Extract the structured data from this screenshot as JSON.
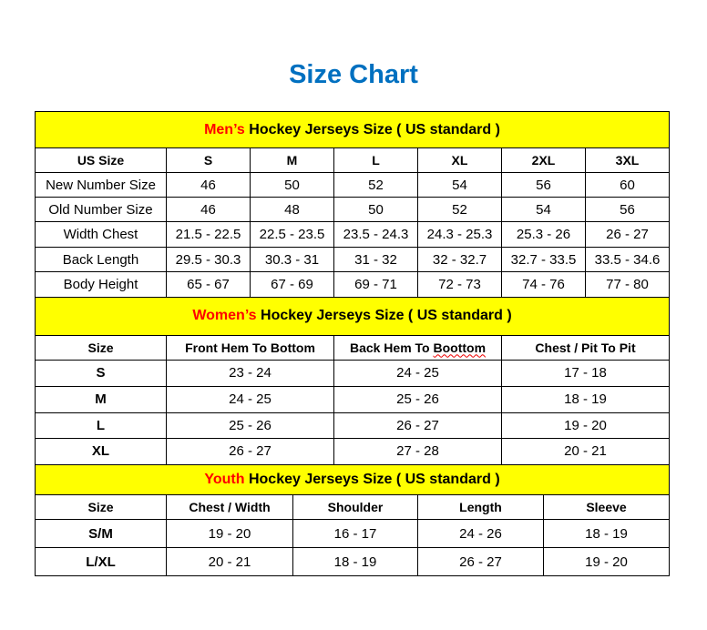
{
  "title": "Size Chart",
  "colors": {
    "title": "#0070c0",
    "section_bg": "#ffff00",
    "highlight": "#ff0000"
  },
  "men": {
    "prefix": "Men’s",
    "heading": " Hockey Jerseys Size ( US standard )",
    "columns": [
      "US Size",
      "S",
      "M",
      "L",
      "XL",
      "2XL",
      "3XL"
    ],
    "rows": [
      {
        "label": "New Number Size",
        "values": [
          "46",
          "50",
          "52",
          "54",
          "56",
          "60"
        ]
      },
      {
        "label": "Old Number Size",
        "values": [
          "46",
          "48",
          "50",
          "52",
          "54",
          "56"
        ]
      },
      {
        "label": "Width Chest",
        "values": [
          "21.5 - 22.5",
          "22.5 - 23.5",
          "23.5 - 24.3",
          "24.3 - 25.3",
          "25.3 - 26",
          "26 - 27"
        ]
      },
      {
        "label": "Back Length",
        "values": [
          "29.5 - 30.3",
          "30.3 - 31",
          "31 - 32",
          "32 - 32.7",
          "32.7 - 33.5",
          "33.5 - 34.6"
        ]
      },
      {
        "label": "Body Height",
        "values": [
          "65 - 67",
          "67 - 69",
          "69 - 71",
          "72 - 73",
          "74 - 76",
          "77 - 80"
        ]
      }
    ]
  },
  "women": {
    "prefix": "Women’s",
    "heading": " Hockey Jerseys Size ( US standard )",
    "columns": [
      "Size",
      "Front Hem To Bottom",
      "Back Hem To ",
      "Chest / Pit To Pit"
    ],
    "misspelled_word": "Boottom",
    "rows": [
      {
        "label": "S",
        "values": [
          "23 - 24",
          "24 - 25",
          "17 - 18"
        ]
      },
      {
        "label": "M",
        "values": [
          "24 - 25",
          "25 - 26",
          "18 - 19"
        ]
      },
      {
        "label": "L",
        "values": [
          "25 - 26",
          "26 - 27",
          "19 - 20"
        ]
      },
      {
        "label": "XL",
        "values": [
          "26 - 27",
          "27 - 28",
          "20 - 21"
        ]
      }
    ]
  },
  "youth": {
    "prefix": "Youth",
    "heading": " Hockey Jerseys Size ( US standard )",
    "columns": [
      "Size",
      "Chest / Width",
      "Shoulder",
      "Length",
      "Sleeve"
    ],
    "rows": [
      {
        "label": "S/M",
        "values": [
          "19 - 20",
          "16 - 17",
          "24 - 26",
          "18 - 19"
        ]
      },
      {
        "label": "L/XL",
        "values": [
          "20 - 21",
          "18 - 19",
          "26 - 27",
          "19 - 20"
        ]
      }
    ]
  }
}
